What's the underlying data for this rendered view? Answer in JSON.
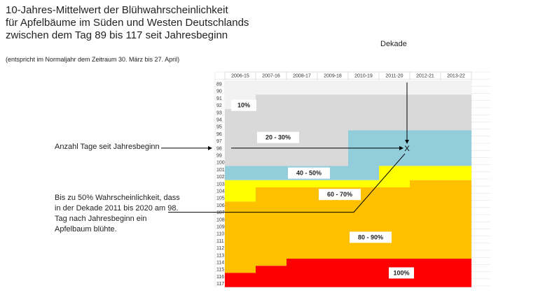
{
  "title_lines": [
    "10-Jahres-Mittelwert der Blühwahrscheinlichkeit",
    "für Apfelbäume im Süden und Westen Deutschlands",
    "zwischen dem Tag 89 bis 117 seit Jahresbeginn"
  ],
  "note": "(entspricht im Normaljahr dem Zeitraum 30. März bis 27. April)",
  "decade_label": "Dekade",
  "annotations": {
    "days_label": "Anzahl Tage seit Jahresbeginn",
    "explanation": "Bis zu 50% Wahrscheinlichkeit, dass in der Dekade 2011 bis 2020 am 98. Tag nach Jahresbeginn ein Apfelbaum blühte.",
    "marker": "X"
  },
  "chart_data": {
    "type": "area",
    "categories": [
      "2006-15",
      "2007-16",
      "2008-17",
      "2009-18",
      "2010-19",
      "2011-20",
      "2012-21",
      "2013-22"
    ],
    "y_ticks": [
      89,
      90,
      91,
      92,
      93,
      94,
      95,
      96,
      97,
      98,
      99,
      100,
      101,
      102,
      103,
      104,
      105,
      106,
      107,
      108,
      109,
      110,
      111,
      112,
      113,
      114,
      115,
      116,
      117
    ],
    "ylim": [
      89,
      117
    ],
    "y_direction": "downward",
    "grid": true,
    "bands": [
      {
        "label": "10%",
        "color": "#f2f2f2",
        "start_day": [
          89,
          89,
          89,
          89,
          89,
          89,
          89,
          89
        ]
      },
      {
        "label": "20 - 30%",
        "color": "#d9d9d9",
        "start_day": [
          93,
          91,
          91,
          91,
          91,
          91,
          91,
          91
        ]
      },
      {
        "label": "40 - 50%",
        "color": "#92cddc",
        "start_day": [
          101,
          101,
          101,
          101,
          96,
          96,
          96,
          96
        ]
      },
      {
        "label": "60 - 70%",
        "color": "#ffff00",
        "start_day": [
          103,
          103,
          103,
          103,
          103,
          101,
          101,
          101
        ]
      },
      {
        "label": "80 - 90%",
        "color": "#ffc000",
        "start_day": [
          106,
          104,
          104,
          104,
          104,
          104,
          103,
          103
        ]
      },
      {
        "label": "100%",
        "color": "#ff0000",
        "start_day": [
          116,
          115,
          114,
          114,
          114,
          114,
          114,
          114
        ]
      }
    ],
    "band_label_positions": [
      {
        "category": "2006-15",
        "day": 92
      },
      {
        "category": "2007-16",
        "day": 96.5
      },
      {
        "category": "2008-17",
        "day": 101.5
      },
      {
        "category": "2009-18",
        "day": 104.5
      },
      {
        "category": "2010-19",
        "day": 110.5
      },
      {
        "category": "2011-20",
        "day": 115.5
      }
    ],
    "highlight_point": {
      "category": "2011-20",
      "day": 98
    },
    "explanation_anchor_day": 107
  }
}
